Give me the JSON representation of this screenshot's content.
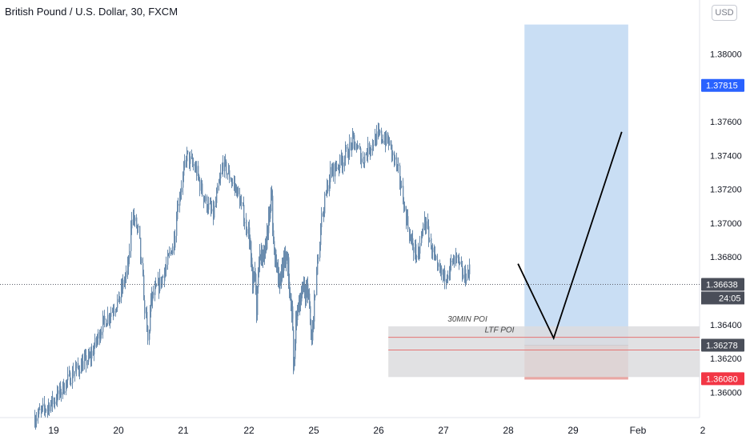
{
  "header": {
    "title": "British Pound / U.S. Dollar, 30, FXCM",
    "currency_button": "USD"
  },
  "colors": {
    "candle": "#6a8cae",
    "target_zone": "#c6dcf3",
    "stop_zone": "#e8a29f",
    "poi_zone": "#dcdcde",
    "red_line": "#e57373",
    "current_tag": "#4a4e59",
    "target_tag": "#2962ff",
    "stop_tag": "#f23645"
  },
  "chart_data": {
    "type": "candlestick",
    "title": "British Pound / U.S. Dollar, 30, FXCM",
    "x_tick_labels": [
      "19",
      "20",
      "21",
      "22",
      "25",
      "26",
      "27",
      "28",
      "29",
      "Feb",
      "2"
    ],
    "y_tick_labels": [
      "1.38000",
      "1.37600",
      "1.37400",
      "1.37200",
      "1.37000",
      "1.36800",
      "1.36400",
      "1.36200",
      "1.36000"
    ],
    "ylim": [
      1.3585,
      1.3832
    ],
    "price_tags": {
      "target": "1.37815",
      "current": "1.36638",
      "countdown": "24:05",
      "entry": "1.36278",
      "stop": "1.36080"
    },
    "levels": {
      "target": 1.37815,
      "current": 1.36638,
      "entry": 1.36278,
      "stop": 1.3608
    },
    "zones": [
      {
        "label": "30MIN POI",
        "top": 1.3639,
        "bottom": 1.3609
      },
      {
        "label": "LTF POI",
        "top": 1.36325,
        "bottom": 1.3625
      }
    ],
    "projection": [
      {
        "day": 28.15,
        "price": 1.3676
      },
      {
        "day": 28.7,
        "price": 1.3632
      },
      {
        "day": 29.75,
        "price": 1.3754
      }
    ],
    "path": [
      [
        18.7,
        1.3585
      ],
      [
        19.0,
        1.3595
      ],
      [
        19.3,
        1.3612
      ],
      [
        19.55,
        1.362
      ],
      [
        19.75,
        1.364
      ],
      [
        20.0,
        1.3655
      ],
      [
        20.15,
        1.3675
      ],
      [
        20.2,
        1.3705
      ],
      [
        20.3,
        1.3695
      ],
      [
        20.4,
        1.365
      ],
      [
        20.45,
        1.363
      ],
      [
        20.5,
        1.3655
      ],
      [
        20.7,
        1.367
      ],
      [
        20.85,
        1.369
      ],
      [
        20.9,
        1.371
      ],
      [
        21.05,
        1.374
      ],
      [
        21.2,
        1.373
      ],
      [
        21.3,
        1.3715
      ],
      [
        21.45,
        1.3705
      ],
      [
        21.6,
        1.3735
      ],
      [
        21.8,
        1.372
      ],
      [
        21.95,
        1.37
      ],
      [
        22.05,
        1.3685
      ],
      [
        22.15,
        1.3665
      ],
      [
        22.25,
        1.3672
      ],
      [
        22.35,
        1.3648
      ],
      [
        22.45,
        1.368
      ],
      [
        22.6,
        1.3682
      ],
      [
        22.8,
        1.3688
      ],
      [
        22.9,
        1.3702
      ],
      [
        23.0,
        1.3712
      ],
      [
        23.05,
        1.372
      ],
      [
        23.1,
        1.369
      ],
      [
        23.25,
        1.3675
      ],
      [
        23.4,
        1.3665
      ],
      [
        23.5,
        1.367
      ],
      [
        23.65,
        1.368
      ],
      [
        23.8,
        1.3675
      ],
      [
        23.9,
        1.3655
      ],
      [
        24.0,
        1.3645
      ],
      [
        24.05,
        1.3615
      ],
      [
        24.15,
        1.364
      ],
      [
        24.3,
        1.3652
      ],
      [
        24.5,
        1.3662
      ],
      [
        24.6,
        1.3657
      ],
      [
        24.7,
        1.3662
      ],
      [
        24.8,
        1.3648
      ],
      [
        24.9,
        1.3628
      ],
      [
        25.0,
        1.3652
      ],
      [
        25.1,
        1.37
      ],
      [
        25.25,
        1.373
      ],
      [
        25.45,
        1.3738
      ],
      [
        25.6,
        1.3748
      ],
      [
        25.75,
        1.3738
      ],
      [
        25.9,
        1.3748
      ],
      [
        26.0,
        1.3752
      ],
      [
        26.15,
        1.3748
      ],
      [
        26.3,
        1.373
      ],
      [
        26.4,
        1.3708
      ],
      [
        26.5,
        1.3688
      ],
      [
        26.6,
        1.368
      ],
      [
        26.7,
        1.3702
      ],
      [
        26.8,
        1.3688
      ],
      [
        26.9,
        1.3672
      ],
      [
        27.0,
        1.3668
      ],
      [
        27.1,
        1.3675
      ],
      [
        27.2,
        1.3678
      ],
      [
        27.3,
        1.3668
      ],
      [
        27.4,
        1.3672
      ]
    ]
  }
}
